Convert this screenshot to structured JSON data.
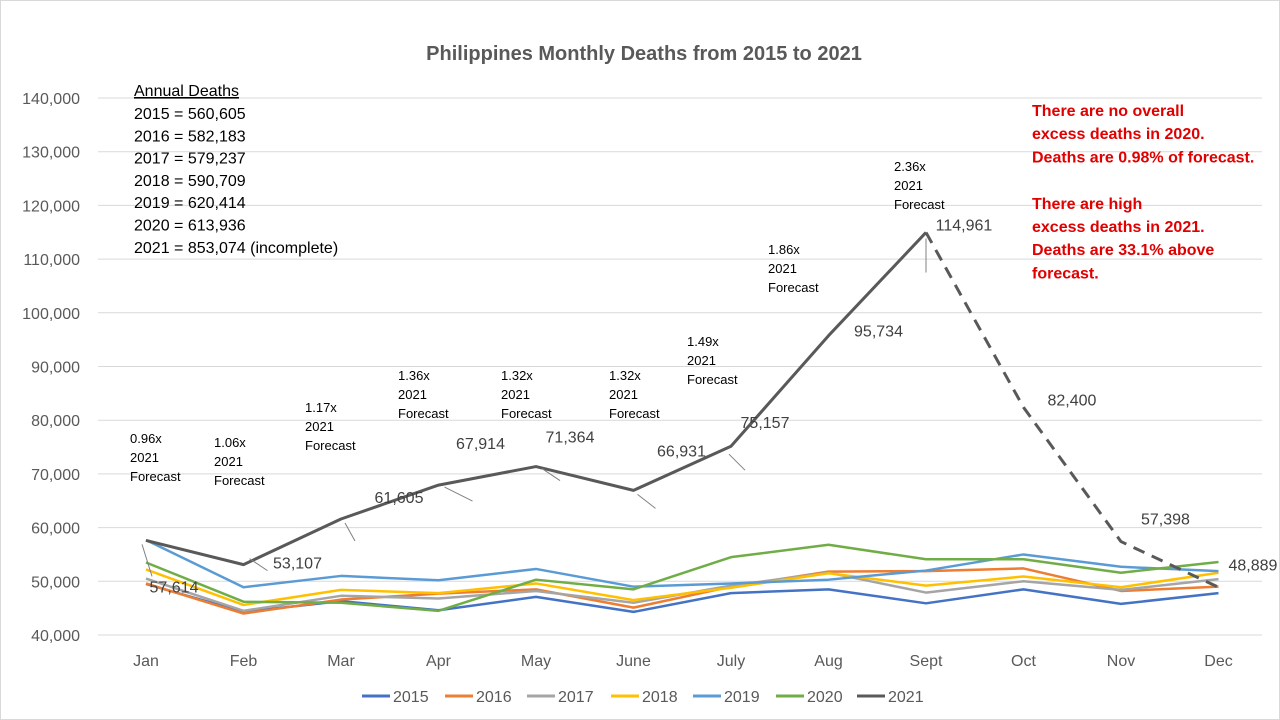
{
  "chart_data": {
    "type": "line",
    "title": "Philippines Monthly Deaths from 2015 to 2021",
    "categories": [
      "Jan",
      "Feb",
      "Mar",
      "Apr",
      "May",
      "June",
      "July",
      "Aug",
      "Sept",
      "Oct",
      "Nov",
      "Dec"
    ],
    "ylim": [
      40000,
      140000
    ],
    "yticks": [
      "40,000",
      "50,000",
      "60,000",
      "70,000",
      "80,000",
      "90,000",
      "100,000",
      "110,000",
      "120,000",
      "130,000",
      "140,000"
    ],
    "grid": true,
    "legend_position": "bottom",
    "series": [
      {
        "name": "2015",
        "color": "#4472c4",
        "values": [
          49500,
          44300,
          46300,
          44600,
          47100,
          44300,
          47800,
          48500,
          45900,
          48500,
          45800,
          47800
        ]
      },
      {
        "name": "2016",
        "color": "#ed7d31",
        "values": [
          49600,
          44000,
          46600,
          47700,
          48500,
          45100,
          49000,
          51800,
          51900,
          52400,
          48200,
          49000
        ]
      },
      {
        "name": "2017",
        "color": "#a5a5a5",
        "values": [
          50500,
          44500,
          47300,
          46800,
          48200,
          46000,
          49200,
          51600,
          47900,
          50000,
          48400,
          50400
        ]
      },
      {
        "name": "2018",
        "color": "#ffc000",
        "values": [
          52200,
          45600,
          48400,
          47800,
          49600,
          46500,
          48800,
          51500,
          49200,
          50900,
          48900,
          51600
        ]
      },
      {
        "name": "2019",
        "color": "#5b9bd5",
        "values": [
          57700,
          48900,
          51000,
          50200,
          52300,
          49000,
          49600,
          50300,
          52000,
          55000,
          52700,
          51900
        ]
      },
      {
        "name": "2020",
        "color": "#70ad47",
        "values": [
          53500,
          46200,
          46000,
          44500,
          50300,
          48500,
          54500,
          56800,
          54100,
          54100,
          51600,
          53600
        ]
      },
      {
        "name": "2021",
        "color": "#595959",
        "values": [
          57614,
          53107,
          61605,
          67914,
          71364,
          66931,
          75157,
          95734,
          114961,
          82400,
          57398,
          48889
        ],
        "dashed_from_index": 8
      }
    ],
    "data_labels": [
      "57,614",
      "53,107",
      "61,605",
      "67,914",
      "71,364",
      "66,931",
      "75,157",
      "95,734",
      "114,961",
      "82,400",
      "57,398",
      "48,889"
    ],
    "forecast_labels": [
      {
        "ratio": "0.96x",
        "line2": "2021",
        "line3": "Forecast"
      },
      {
        "ratio": "1.06x",
        "line2": "2021",
        "line3": "Forecast"
      },
      {
        "ratio": "1.17x",
        "line2": "2021",
        "line3": "Forecast"
      },
      {
        "ratio": "1.36x",
        "line2": "2021",
        "line3": "Forecast"
      },
      {
        "ratio": "1.32x",
        "line2": "2021",
        "line3": "Forecast"
      },
      {
        "ratio": "1.32x",
        "line2": "2021",
        "line3": "Forecast"
      },
      {
        "ratio": "1.49x",
        "line2": "2021",
        "line3": "Forecast"
      },
      {
        "ratio": "1.86x",
        "line2": "2021",
        "line3": "Forecast"
      },
      {
        "ratio": "2.36x",
        "line2": "2021",
        "line3": "Forecast"
      }
    ],
    "annual_deaths": {
      "heading": "Annual Deaths",
      "lines": [
        "2015 = 560,605",
        "2016 = 582,183",
        "2017 = 579,237",
        "2018 = 590,709",
        "2019 = 620,414",
        "2020 = 613,936",
        "2021 = 853,074 (incomplete)"
      ]
    },
    "notes": [
      "There are no overall",
      "excess deaths in 2020.",
      "Deaths are 0.98% of forecast.",
      "",
      "There are high",
      "excess deaths in 2021.",
      "Deaths are 33.1% above",
      "forecast."
    ]
  }
}
